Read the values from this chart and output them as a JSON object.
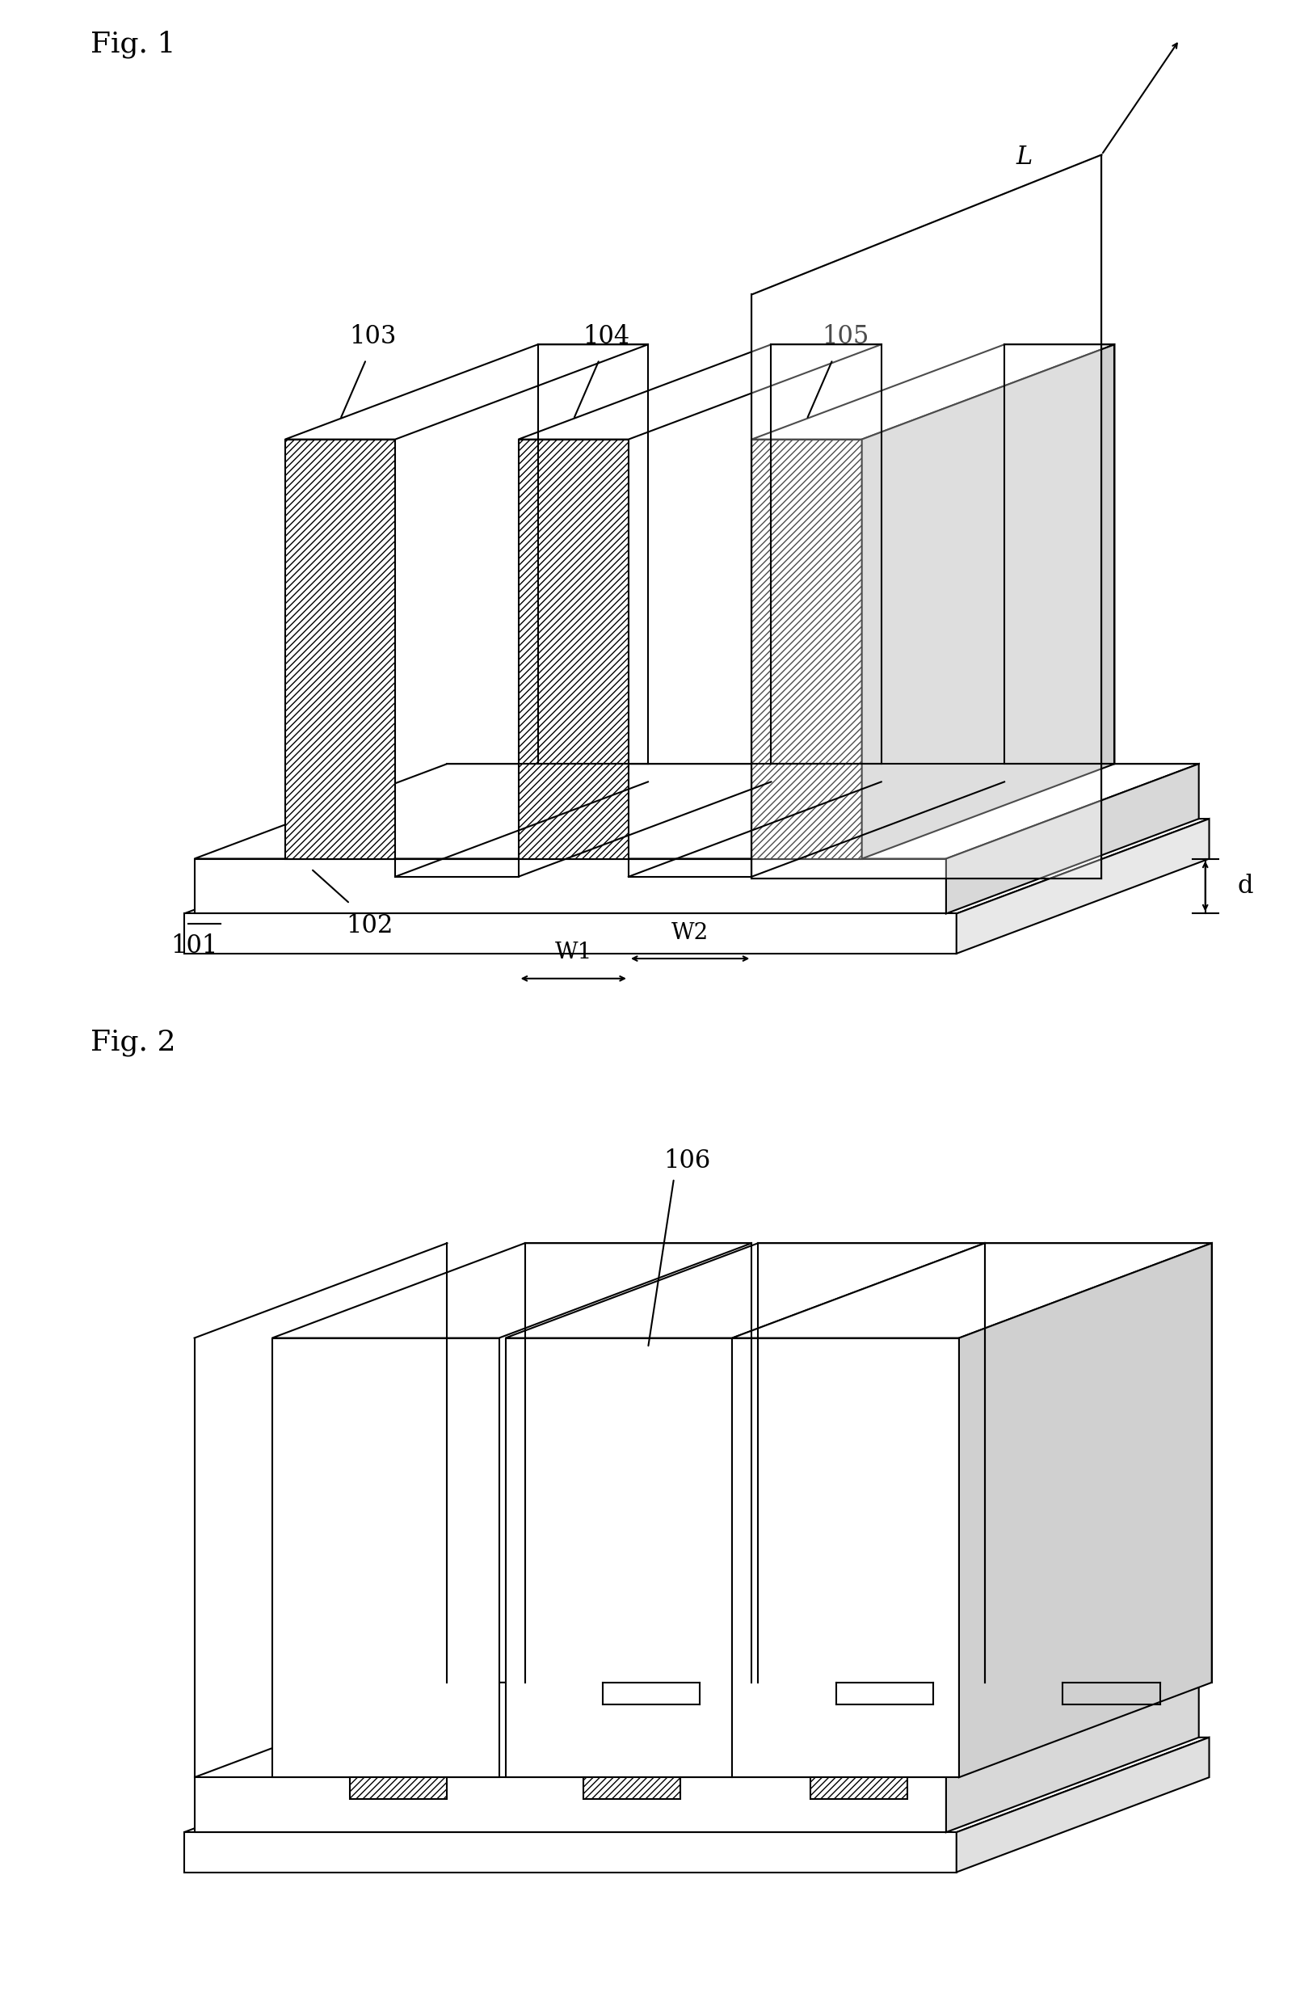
{
  "fig1_label": "Fig. 1",
  "fig2_label": "Fig. 2",
  "labels": {
    "101": "101",
    "102": "102",
    "103": "103",
    "104": "104",
    "105": "105",
    "106": "106",
    "L": "L",
    "d": "d",
    "W1": "W1",
    "W2": "W2"
  },
  "line_color": "#000000",
  "hatch_color": "#000000",
  "bg_color": "#ffffff",
  "line_width": 1.5,
  "hatch_pattern": "////"
}
